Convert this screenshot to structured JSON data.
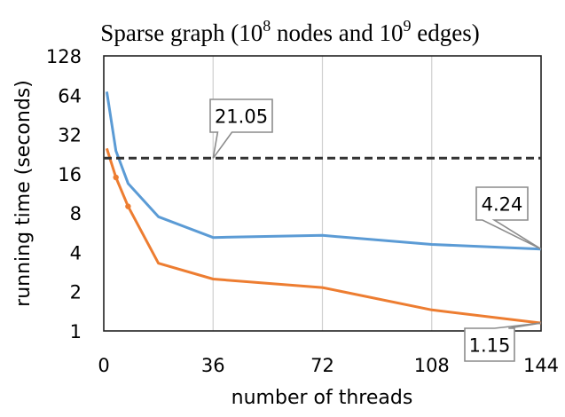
{
  "chart_data": {
    "type": "line",
    "title": {
      "prefix": "Sparse graph (10",
      "sup1": "8",
      "mid": " nodes and 10",
      "sup2": "9",
      "suffix": " edges)"
    },
    "xlabel": "number of threads",
    "ylabel": "running time (seconds)",
    "xlim": [
      0,
      144
    ],
    "ylim": [
      1,
      128
    ],
    "yscale": "log2",
    "x_ticks": [
      0,
      36,
      72,
      108,
      144
    ],
    "y_ticks": [
      1,
      2,
      4,
      8,
      16,
      32,
      64,
      128
    ],
    "grid": "vertical",
    "legend": "none",
    "series": [
      {
        "color": "#5b9bd5",
        "style": "solid",
        "points": [
          [
            1,
            68
          ],
          [
            4,
            24
          ],
          [
            8,
            13.5
          ],
          [
            18,
            7.5
          ],
          [
            36,
            5.2
          ],
          [
            72,
            5.4
          ],
          [
            108,
            4.6
          ],
          [
            144,
            4.24
          ]
        ]
      },
      {
        "color": "#ed7d31",
        "style": "solid",
        "markers": [
          4,
          8
        ],
        "points": [
          [
            1,
            25
          ],
          [
            4,
            15
          ],
          [
            8,
            9
          ],
          [
            18,
            3.3
          ],
          [
            36,
            2.5
          ],
          [
            72,
            2.15
          ],
          [
            108,
            1.45
          ],
          [
            144,
            1.15
          ]
        ]
      },
      {
        "color": "#333333",
        "style": "dashed",
        "points": [
          [
            0,
            21.05
          ],
          [
            144,
            21.05
          ]
        ]
      }
    ],
    "annotations": [
      {
        "text": "21.05",
        "x": 36,
        "y": 21.05
      },
      {
        "text": "4.24",
        "x": 144,
        "y": 4.24
      },
      {
        "text": "1.15",
        "x": 144,
        "y": 1.15
      }
    ]
  }
}
